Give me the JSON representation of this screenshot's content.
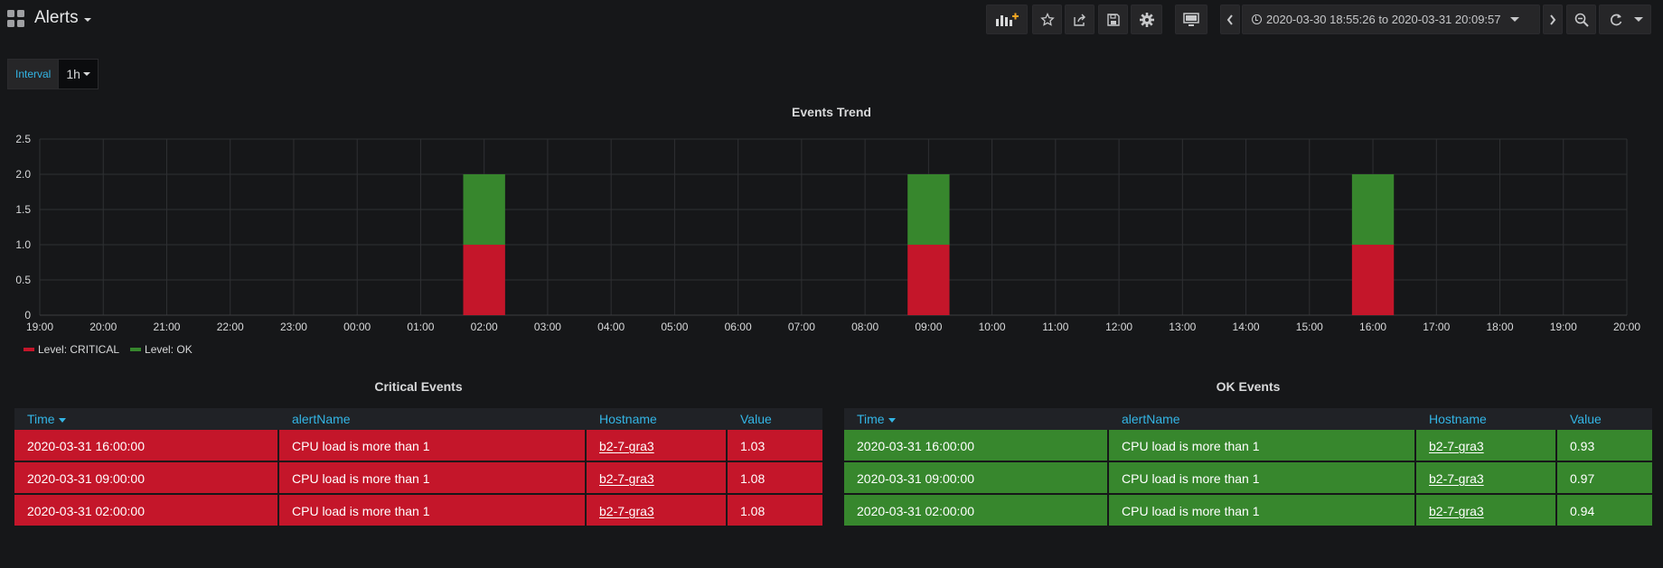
{
  "dashboard": {
    "title": "Alerts"
  },
  "toolbar": {
    "add_panel_icon": "add-panel-icon",
    "star_icon": "star-icon",
    "share_icon": "share-icon",
    "save_icon": "save-icon",
    "settings_icon": "gear-icon",
    "tv_icon": "tv-icon",
    "time_range": "2020-03-30 18:55:26 to 2020-03-31 20:09:57",
    "zoom_icon": "zoom-out-icon",
    "refresh_icon": "refresh-icon"
  },
  "variables": {
    "interval_label": "Interval",
    "interval_value": "1h"
  },
  "chart": {
    "title": "Events Trend",
    "legend": [
      {
        "label": "Level: CRITICAL",
        "color": "#c4162a"
      },
      {
        "label": "Level: OK",
        "color": "#37872d"
      }
    ]
  },
  "chart_data": {
    "type": "bar",
    "stacked": true,
    "title": "Events Trend",
    "xlabel": "",
    "ylabel": "",
    "ylim": [
      0,
      2.5
    ],
    "yticks": [
      "0",
      "0.5",
      "1.0",
      "1.5",
      "2.0",
      "2.5"
    ],
    "xticks": [
      "19:00",
      "20:00",
      "21:00",
      "22:00",
      "23:00",
      "00:00",
      "01:00",
      "02:00",
      "03:00",
      "04:00",
      "05:00",
      "06:00",
      "07:00",
      "08:00",
      "09:00",
      "10:00",
      "11:00",
      "12:00",
      "13:00",
      "14:00",
      "15:00",
      "16:00",
      "17:00",
      "18:00",
      "19:00",
      "20:00"
    ],
    "categories": [
      "02:00",
      "09:00",
      "16:00"
    ],
    "series": [
      {
        "name": "Level: CRITICAL",
        "color": "#c4162a",
        "values": [
          1,
          1,
          1
        ]
      },
      {
        "name": "Level: OK",
        "color": "#37872d",
        "values": [
          1,
          1,
          1
        ]
      }
    ],
    "grid": true,
    "legend": "bottom-left"
  },
  "critical": {
    "title": "Critical Events",
    "columns": [
      "Time",
      "alertName",
      "Hostname",
      "Value"
    ],
    "rows": [
      {
        "time": "2020-03-31 16:00:00",
        "alert": "CPU load is more than 1",
        "host": "b2-7-gra3",
        "value": "1.03"
      },
      {
        "time": "2020-03-31 09:00:00",
        "alert": "CPU load is more than 1",
        "host": "b2-7-gra3",
        "value": "1.08"
      },
      {
        "time": "2020-03-31 02:00:00",
        "alert": "CPU load is more than 1",
        "host": "b2-7-gra3",
        "value": "1.08"
      }
    ]
  },
  "ok": {
    "title": "OK Events",
    "columns": [
      "Time",
      "alertName",
      "Hostname",
      "Value"
    ],
    "rows": [
      {
        "time": "2020-03-31 16:00:00",
        "alert": "CPU load is more than 1",
        "host": "b2-7-gra3",
        "value": "0.93"
      },
      {
        "time": "2020-03-31 09:00:00",
        "alert": "CPU load is more than 1",
        "host": "b2-7-gra3",
        "value": "0.97"
      },
      {
        "time": "2020-03-31 02:00:00",
        "alert": "CPU load is more than 1",
        "host": "b2-7-gra3",
        "value": "0.94"
      }
    ]
  }
}
